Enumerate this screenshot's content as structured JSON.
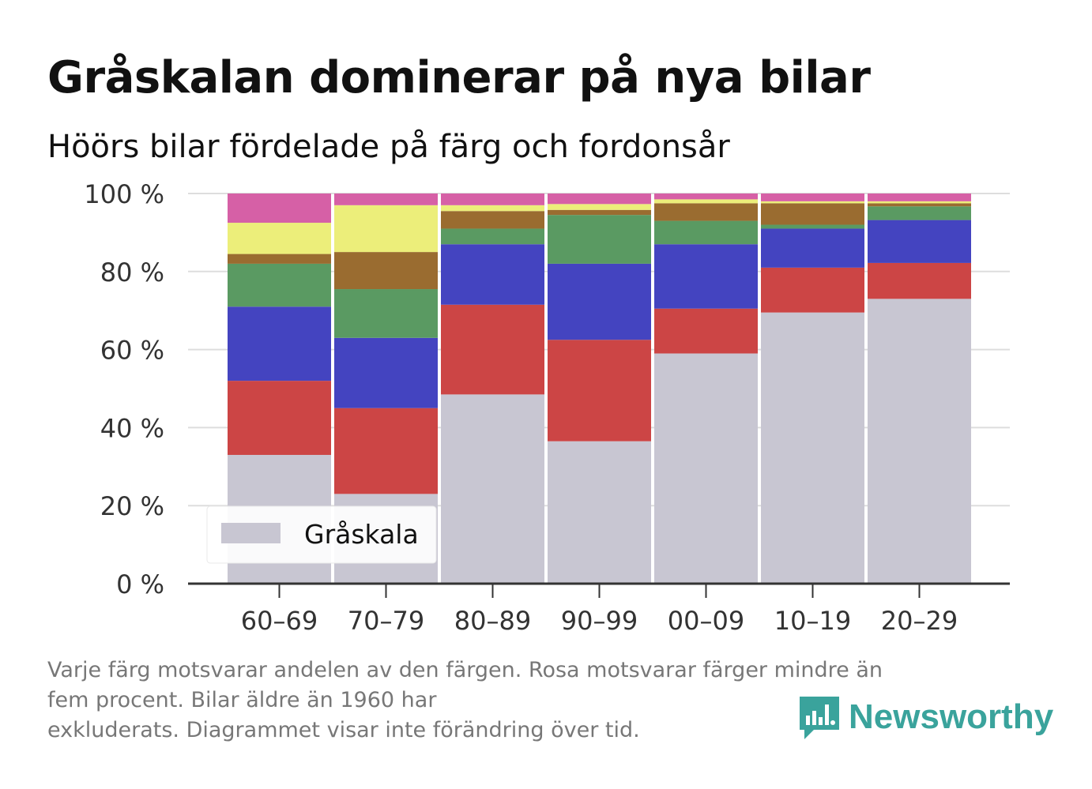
{
  "title": "Gråskalan dominerar på nya bilar",
  "subtitle": "Höörs bilar fördelade på färg och fordonsår",
  "footnote": {
    "line1": "Varje färg motsvarar andelen av den färgen. Rosa motsvarar färger mindre än",
    "line2": "fem procent. Bilar äldre än 1960 har",
    "line3": "exkluderats. Diagrammet visar inte förändring över tid."
  },
  "brand": {
    "name": "Newsworthy",
    "icon": "newsworthy-logo-icon",
    "color": "#3aa39c"
  },
  "chart_data": {
    "type": "bar",
    "stacked": true,
    "categories": [
      "60–69",
      "70–79",
      "80–89",
      "90–99",
      "00–09",
      "10–19",
      "20–29"
    ],
    "y_ticks": [
      "0 %",
      "20 %",
      "40 %",
      "60 %",
      "80 %",
      "100 %"
    ],
    "ylim": [
      0,
      100
    ],
    "grid": true,
    "legend": {
      "position": "bottom-left",
      "entries": [
        "Gråskala"
      ]
    },
    "series": [
      {
        "name": "Gråskala",
        "color": "#c8c6d2",
        "values": [
          33,
          23,
          48.5,
          36.5,
          59,
          69.5,
          73
        ]
      },
      {
        "color": "#cc4545",
        "values": [
          19,
          22,
          23,
          26,
          11.5,
          11.5,
          9.2
        ]
      },
      {
        "color": "#4444c0",
        "values": [
          19,
          18,
          15.5,
          19.5,
          16.5,
          10,
          11
        ]
      },
      {
        "color": "#5a9a62",
        "values": [
          11,
          12.5,
          4,
          12.5,
          6,
          1,
          3.5
        ]
      },
      {
        "color": "#9a6c30",
        "values": [
          2.5,
          9.5,
          4.5,
          1.3,
          4.5,
          5.5,
          0.8
        ]
      },
      {
        "color": "#ecee7a",
        "values": [
          8,
          12,
          1.5,
          1.5,
          1,
          0.5,
          0.5
        ]
      },
      {
        "color": "#d660a6",
        "values": [
          7.5,
          3,
          3,
          2.7,
          1.5,
          2,
          2
        ]
      }
    ]
  }
}
